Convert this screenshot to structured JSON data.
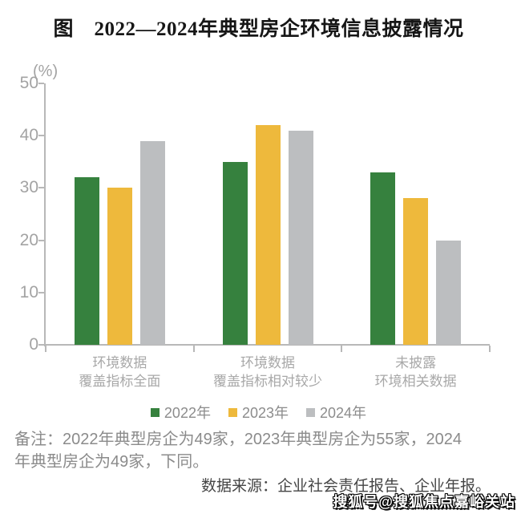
{
  "title": "图　2022—2024年典型房企环境信息披露情况",
  "chart_data": {
    "type": "bar",
    "title": "图　2022—2024年典型房企环境信息披露情况",
    "unit_label": "(%)",
    "categories": [
      [
        "环境数据",
        "覆盖指标全面"
      ],
      [
        "环境数据",
        "覆盖指标相对较少"
      ],
      [
        "未披露",
        "环境相关数据"
      ]
    ],
    "series": [
      {
        "name": "2022年",
        "color": "#36813E",
        "values": [
          32,
          35,
          33
        ]
      },
      {
        "name": "2023年",
        "color": "#EEB93C",
        "values": [
          30,
          42,
          28
        ]
      },
      {
        "name": "2024年",
        "color": "#BCBEC0",
        "values": [
          39,
          41,
          20
        ]
      }
    ],
    "ylim": [
      0,
      50
    ],
    "yticks": [
      0,
      10,
      20,
      30,
      40,
      50
    ],
    "grid": false,
    "legend_position": "bottom",
    "axis_color": "#b8b8b8",
    "tick_label_color": "#a3a3a3"
  },
  "note_lines": [
    "备注：2022年典型房企为49家，2023年典型房企为55家，2024",
    "年典型房企为49家，下同。"
  ],
  "source": "数据来源：企业社会责任报告、企业年报。",
  "watermark": "搜狐号@搜狐焦点嘉峪关站"
}
